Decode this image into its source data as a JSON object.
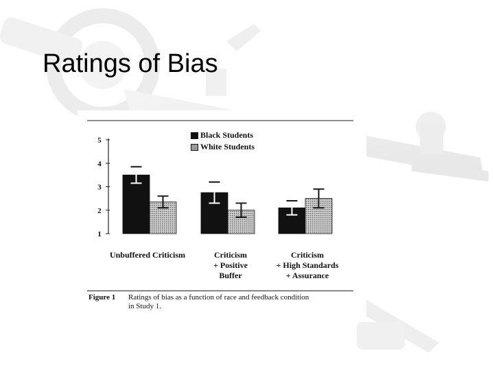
{
  "slide": {
    "title": "Ratings of Bias"
  },
  "figure": {
    "caption_label": "Figure 1",
    "caption_text": "Ratings of bias as a function of race and feedback condition",
    "caption_text_line2": "in Study 1."
  },
  "chart_data": {
    "type": "bar",
    "categories": [
      [
        "Unbuffered Criticism"
      ],
      [
        "Criticism",
        "+ Positive",
        "Buffer"
      ],
      [
        "Criticism",
        "+ High Standards",
        "+ Assurance"
      ]
    ],
    "series": [
      {
        "name": "Black Students",
        "color": "#111111",
        "values": [
          3.5,
          2.75,
          2.1
        ],
        "errors": [
          0.35,
          0.45,
          0.3
        ]
      },
      {
        "name": "White Students",
        "color": "#9a9a9a",
        "values": [
          2.35,
          2.0,
          2.5
        ],
        "errors": [
          0.25,
          0.3,
          0.4
        ]
      }
    ],
    "yticks": [
      1,
      2,
      3,
      4,
      5
    ],
    "ylim": [
      1,
      5
    ],
    "grid": false,
    "legend_position": "top-right"
  },
  "colors": {
    "bg_decor": "#e6e6e6",
    "bar_black": "#111111",
    "bar_white_pattern": "#9a9a9a"
  }
}
